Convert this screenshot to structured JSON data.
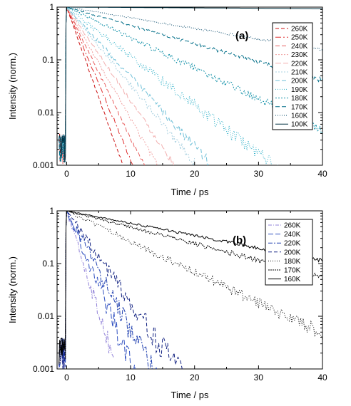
{
  "chart_data": [
    {
      "type": "line",
      "panel_label": "(a)",
      "xlabel": "Time / ps",
      "ylabel": "Intensity (norm.)",
      "xlim": [
        -1.5,
        40
      ],
      "ylim": [
        0.001,
        1
      ],
      "yscale": "log",
      "x_ticks": [
        0,
        10,
        20,
        30,
        40
      ],
      "y_ticks": [
        {
          "v": 0.001,
          "label": "0.001"
        },
        {
          "v": 0.01,
          "label": "0.01"
        },
        {
          "v": 0.1,
          "label": "0.1"
        },
        {
          "v": 1,
          "label": "1"
        }
      ],
      "legend_position": "top-right",
      "series": [
        {
          "name": "260K",
          "color": "#cc1111",
          "dash": "5,3",
          "tau": 1.27,
          "end": 9.5,
          "noise": 0.05
        },
        {
          "name": "250K",
          "color": "#e03030",
          "dash": "8,3,2,3",
          "tau": 1.5,
          "end": 10.5,
          "noise": 0.05
        },
        {
          "name": "240K",
          "color": "#e86060",
          "dash": "6,3",
          "tau": 1.75,
          "end": 12.3,
          "noise": 0.06
        },
        {
          "name": "230K",
          "color": "#f0a0a0",
          "dash": "2,2",
          "tau": 2.05,
          "end": 14.3,
          "noise": 0.07
        },
        {
          "name": "220K",
          "color": "#f2b0b0",
          "dash": "8,3",
          "tau": 2.45,
          "end": 17.0,
          "noise": 0.08
        },
        {
          "name": "210K",
          "color": "#a8d0e0",
          "dash": "2,2",
          "tau": 2.95,
          "end": 20.0,
          "noise": 0.1
        },
        {
          "name": "200K",
          "color": "#70c0d8",
          "dash": "6,3",
          "tau": 3.3,
          "end": 22.3,
          "noise": 0.12
        },
        {
          "name": "190K",
          "color": "#30b0c8",
          "dash": "1,2",
          "tau": 4.7,
          "end": 33.0,
          "noise": 0.18
        },
        {
          "name": "180K",
          "color": "#1090a8",
          "dash": "2,2",
          "tau": 7.5,
          "end": 40,
          "noise": 0.12
        },
        {
          "name": "170K",
          "color": "#006e88",
          "dash": "6,3",
          "tau": 12.5,
          "end": 40,
          "noise": 0.06
        },
        {
          "name": "160K",
          "color": "#004466",
          "dash": "1,2",
          "tau": 21.5,
          "end": 40,
          "noise": 0.04
        },
        {
          "name": "100K",
          "color": "#003040",
          "dash": "",
          "tau": 600,
          "end": 40,
          "noise": 0.0
        }
      ]
    },
    {
      "type": "line",
      "panel_label": "(b)",
      "xlabel": "Time / ps",
      "ylabel": "Intensity (norm.)",
      "xlim": [
        -1.5,
        40
      ],
      "ylim": [
        0.001,
        1
      ],
      "yscale": "log",
      "x_ticks": [
        0,
        10,
        20,
        30,
        40
      ],
      "y_ticks": [
        {
          "v": 0.001,
          "label": "0.001"
        },
        {
          "v": 0.01,
          "label": "0.01"
        },
        {
          "v": 0.1,
          "label": "0.1"
        },
        {
          "v": 1,
          "label": "1"
        }
      ],
      "legend_position": "top-right",
      "series": [
        {
          "name": "260K",
          "color": "#9080d8",
          "dash": "5,2,1,2",
          "tau": 1.15,
          "end": 7.5,
          "noise": 0.25
        },
        {
          "name": "240K",
          "color": "#3050c0",
          "dash": "7,3",
          "tau": 1.55,
          "end": 12.0,
          "noise": 0.35
        },
        {
          "name": "220K",
          "color": "#2040b0",
          "dash": "6,2,2,2",
          "tau": 1.95,
          "end": 15.5,
          "noise": 0.35
        },
        {
          "name": "200K",
          "color": "#102080",
          "dash": "5,3",
          "tau": 2.55,
          "end": 20.5,
          "noise": 0.35
        },
        {
          "name": "180K",
          "color": "#000000",
          "dash": "1,2",
          "tau": 7.5,
          "end": 40,
          "noise": 0.15
        },
        {
          "name": "170K",
          "color": "#000000",
          "dash": "2,1",
          "tau": 14.0,
          "end": 40,
          "noise": 0.08
        },
        {
          "name": "160K",
          "color": "#000000",
          "dash": "",
          "tau": 18.5,
          "end": 40,
          "noise": 0.05
        }
      ]
    }
  ]
}
